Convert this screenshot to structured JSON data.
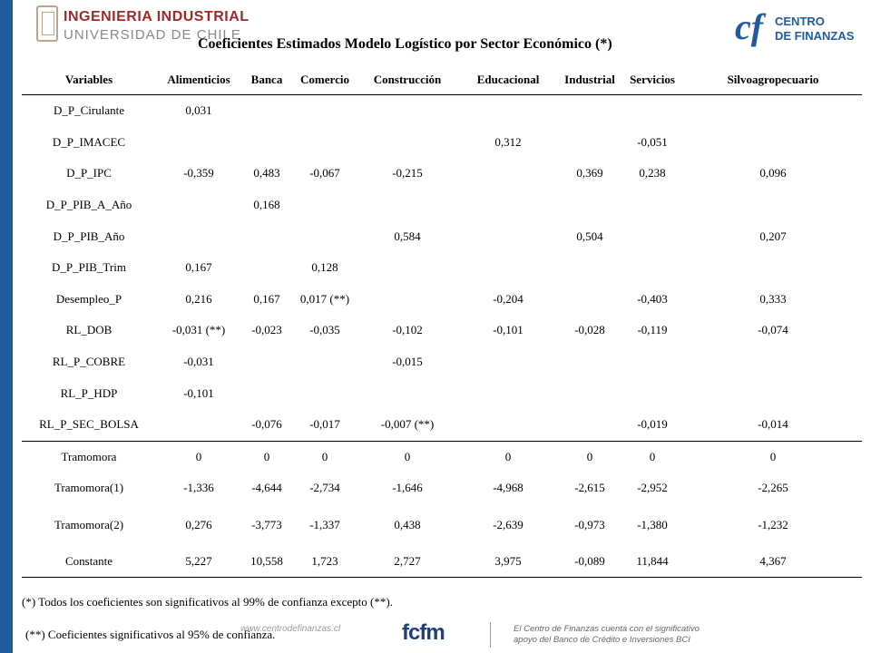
{
  "header": {
    "logo_left_line1": "INGENIERIA INDUSTRIAL",
    "logo_left_line2": "UNIVERSIDAD DE CHILE",
    "logo_right_mark": "cf",
    "logo_right_line1": "CENTRO",
    "logo_right_line2": "DE FINANZAS",
    "title": "Coeficientes Estimados Modelo Logístico por Sector Económico (*)"
  },
  "table": {
    "columns": [
      "Variables",
      "Alimenticios",
      "Banca",
      "Comercio",
      "Construcción",
      "Educacional",
      "Industrial",
      "Servicios",
      "Silvoagropecuario"
    ],
    "rows": [
      [
        "D_P_Cirulante",
        "0,031",
        "",
        "",
        "",
        "",
        "",
        "",
        ""
      ],
      [
        "D_P_IMACEC",
        "",
        "",
        "",
        "",
        "0,312",
        "",
        "-0,051",
        ""
      ],
      [
        "D_P_IPC",
        "-0,359",
        "0,483",
        "-0,067",
        "-0,215",
        "",
        "0,369",
        "0,238",
        "0,096"
      ],
      [
        "D_P_PIB_A_Año",
        "",
        "0,168",
        "",
        "",
        "",
        "",
        "",
        ""
      ],
      [
        "D_P_PIB_Año",
        "",
        "",
        "",
        "0,584",
        "",
        "0,504",
        "",
        "0,207"
      ],
      [
        "D_P_PIB_Trim",
        "0,167",
        "",
        "0,128",
        "",
        "",
        "",
        "",
        ""
      ],
      [
        "Desempleo_P",
        "0,216",
        "0,167",
        "0,017 (**)",
        "",
        "-0,204",
        "",
        "-0,403",
        "0,333"
      ],
      [
        "RL_DOB",
        "-0,031 (**)",
        "-0,023",
        "-0,035",
        "-0,102",
        "-0,101",
        "-0,028",
        "-0,119",
        "-0,074"
      ],
      [
        "RL_P_COBRE",
        "-0,031",
        "",
        "",
        "-0,015",
        "",
        "",
        "",
        ""
      ],
      [
        "RL_P_HDP",
        "-0,101",
        "",
        "",
        "",
        "",
        "",
        "",
        ""
      ],
      [
        "RL_P_SEC_BOLSA",
        "",
        "-0,076",
        "-0,017",
        "-0,007 (**)",
        "",
        "",
        "-0,019",
        "-0,014"
      ],
      [
        "Tramomora",
        "0",
        "0",
        "0",
        "0",
        "0",
        "0",
        "0",
        "0"
      ],
      [
        "Tramomora(1)",
        "-1,336",
        "-4,644",
        "-2,734",
        "-1,646",
        "-4,968",
        "-2,615",
        "-2,952",
        "-2,265"
      ],
      [
        "Tramomora(2)",
        "0,276",
        "-3,773",
        "-1,337",
        "0,438",
        "-2,639",
        "-0,973",
        "-1,380",
        "-1,232"
      ],
      [
        "Constante",
        "5,227",
        "10,558",
        "1,723",
        "2,727",
        "3,975",
        "-0,089",
        "11,844",
        "4,367"
      ]
    ]
  },
  "notes": {
    "note1": "(*) Todos los coeficientes son significativos al 99% de confianza excepto (**).",
    "note2": "(**) Coeficientes significativos al 95% de confianza."
  },
  "footer": {
    "url": "www.centrodefinanzas.cl",
    "fcfm": "fcfm",
    "bci_line1": "El Centro de Finanzas cuenta con el significativo",
    "bci_line2": "apoyo del Banco de Crédito e Inversiones BCI"
  },
  "colors": {
    "accent_blue": "#1f5b9e",
    "logo_red": "#9c2a2a"
  }
}
